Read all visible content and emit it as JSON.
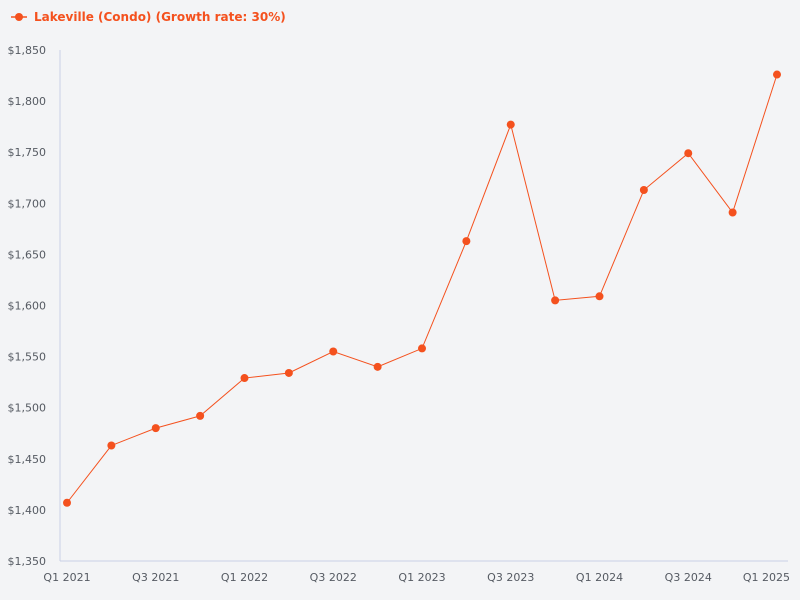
{
  "chart_data": {
    "type": "line",
    "title": "",
    "xlabel": "",
    "ylabel": "",
    "legend_position": "top-left",
    "grid": false,
    "series_color": "#f4511e",
    "axis_color": "#c8cfe6",
    "x_categories": [
      "Q1 2021",
      "Q2 2021",
      "Q3 2021",
      "Q4 2021",
      "Q1 2022",
      "Q2 2022",
      "Q3 2022",
      "Q4 2022",
      "Q1 2023",
      "Q2 2023",
      "Q3 2023",
      "Q4 2023",
      "Q1 2024",
      "Q2 2024",
      "Q3 2024",
      "Q4 2024",
      "Q1 2025"
    ],
    "x_tick_labels": [
      "Q1 2021",
      "",
      "Q3 2021",
      "",
      "Q1 2022",
      "",
      "Q3 2022",
      "",
      "Q1 2023",
      "",
      "Q3 2023",
      "",
      "Q1 2024",
      "",
      "Q3 2024",
      "",
      "Q1 2025"
    ],
    "y_ticks": [
      1350,
      1400,
      1450,
      1500,
      1550,
      1600,
      1650,
      1700,
      1750,
      1800,
      1850
    ],
    "y_tick_labels": [
      "$1,350",
      "$1,400",
      "$1,450",
      "$1,500",
      "$1,550",
      "$1,600",
      "$1,650",
      "$1,700",
      "$1,750",
      "$1,800",
      "$1,850"
    ],
    "ylim": [
      1350,
      1850
    ],
    "series": [
      {
        "name": "Lakeville (Condo) (Growth rate: 30%)",
        "values": [
          1407,
          1463,
          1480,
          1492,
          1529,
          1534,
          1555,
          1540,
          1558,
          1663,
          1777,
          1605,
          1609,
          1713,
          1749,
          1691,
          1826
        ]
      }
    ]
  }
}
